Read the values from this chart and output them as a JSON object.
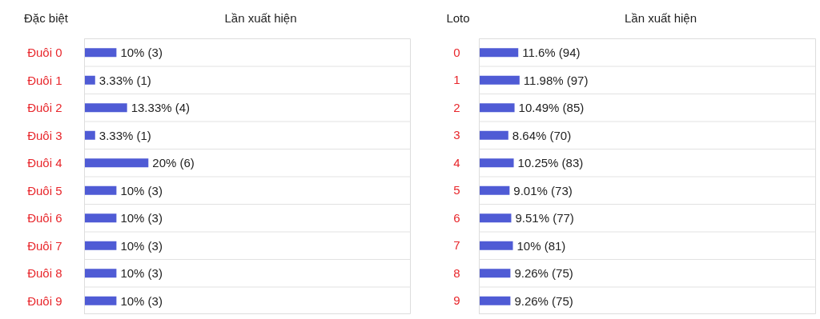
{
  "chart_data": [
    {
      "type": "bar",
      "orientation": "horizontal",
      "ylabel": "Đặc biệt",
      "xlabel": "Lần xuất hiện",
      "categories": [
        "Đuôi 0",
        "Đuôi 1",
        "Đuôi 2",
        "Đuôi 3",
        "Đuôi 4",
        "Đuôi 5",
        "Đuôi 6",
        "Đuôi 7",
        "Đuôi 8",
        "Đuôi 9"
      ],
      "values": [
        10,
        3.33,
        13.33,
        3.33,
        20,
        10,
        10,
        10,
        10,
        10
      ],
      "value_labels": [
        "10% (3)",
        "3.33% (1)",
        "13.33% (4)",
        "3.33% (1)",
        "20% (6)",
        "10% (3)",
        "10% (3)",
        "10% (3)",
        "10% (3)",
        "10% (3)"
      ],
      "color": "#4f5bd5",
      "xlim": [
        0,
        102
      ],
      "tick_labels": "y",
      "grid": true
    },
    {
      "type": "bar",
      "orientation": "horizontal",
      "ylabel": "Loto",
      "xlabel": "Lần xuất hiện",
      "categories": [
        "0",
        "1",
        "2",
        "3",
        "4",
        "5",
        "6",
        "7",
        "8",
        "9"
      ],
      "values": [
        11.6,
        11.98,
        10.49,
        8.64,
        10.25,
        9.01,
        9.51,
        10,
        9.26,
        9.26
      ],
      "value_labels": [
        "11.6% (94)",
        "11.98% (97)",
        "10.49% (85)",
        "8.64% (70)",
        "10.25% (83)",
        "9.01% (73)",
        "9.51% (77)",
        "10% (81)",
        "9.26% (75)",
        "9.26% (75)"
      ],
      "color": "#4f5bd5",
      "xlim": [
        0,
        100
      ],
      "tick_labels": "y",
      "grid": true
    }
  ]
}
